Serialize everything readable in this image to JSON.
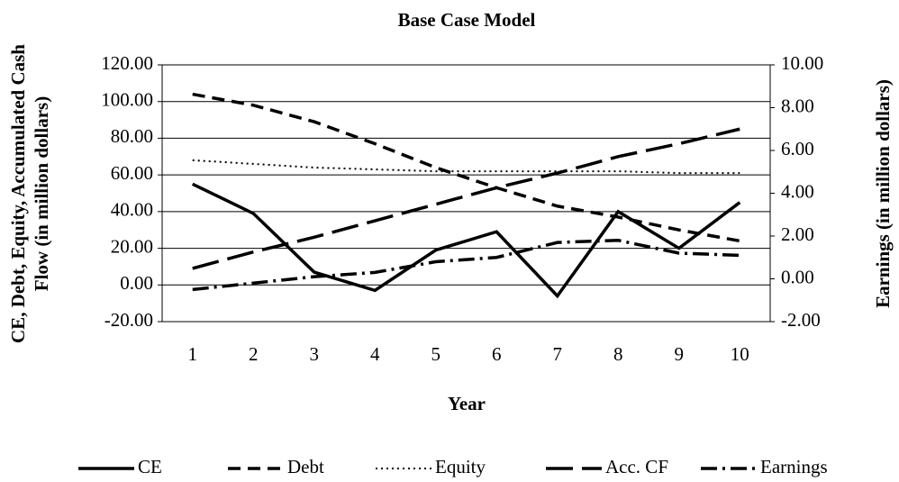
{
  "chart_data": {
    "type": "line",
    "title": "Base Case Model",
    "x_label": "Year",
    "y_label": [
      "CE, Debt, Equity, Accumulated Cash",
      "Flow (in million dollars)"
    ],
    "y2_label": "Earnings (in million dollars)",
    "categories": [
      "1",
      "2",
      "3",
      "4",
      "5",
      "6",
      "7",
      "8",
      "9",
      "10"
    ],
    "ylim": [
      -20,
      120
    ],
    "yticks": [
      {
        "value": -20,
        "label": "-20.00"
      },
      {
        "value": 0,
        "label": "0.00"
      },
      {
        "value": 20,
        "label": "20.00"
      },
      {
        "value": 40,
        "label": "40.00"
      },
      {
        "value": 60,
        "label": "60.00"
      },
      {
        "value": 80,
        "label": "80.00"
      },
      {
        "value": 100,
        "label": "100.00"
      },
      {
        "value": 120,
        "label": "120.00"
      }
    ],
    "y2lim": [
      -2,
      10
    ],
    "y2ticks": [
      {
        "value": -2,
        "label": "-2.00"
      },
      {
        "value": 0,
        "label": "0.00"
      },
      {
        "value": 2,
        "label": "2.00"
      },
      {
        "value": 4,
        "label": "4.00"
      },
      {
        "value": 6,
        "label": "6.00"
      },
      {
        "value": 8,
        "label": "8.00"
      },
      {
        "value": 10,
        "label": "10.00"
      }
    ],
    "grid": true,
    "legend": "bottom",
    "series": [
      {
        "name": "CE",
        "color": "#000000",
        "values": [
          55,
          39,
          7,
          -3,
          19,
          29,
          -6,
          40,
          20,
          45
        ]
      },
      {
        "name": "Debt",
        "color": "#000000",
        "values": [
          104,
          98,
          89,
          77,
          64,
          53,
          43,
          37,
          30,
          24
        ]
      },
      {
        "name": "Equity",
        "color": "#000000",
        "values": [
          68,
          66,
          64,
          63,
          62,
          62,
          62,
          62,
          61,
          61
        ]
      },
      {
        "name": "Acc. CF",
        "color": "#000000",
        "values": [
          9,
          18,
          26,
          35,
          44,
          53,
          61,
          70,
          77,
          85
        ]
      },
      {
        "name": "Earnings",
        "color": "#000000",
        "axis": "y2",
        "values": [
          -0.5,
          -0.2,
          0.1,
          0.3,
          0.8,
          1.0,
          1.7,
          1.8,
          1.2,
          1.1
        ]
      }
    ]
  }
}
